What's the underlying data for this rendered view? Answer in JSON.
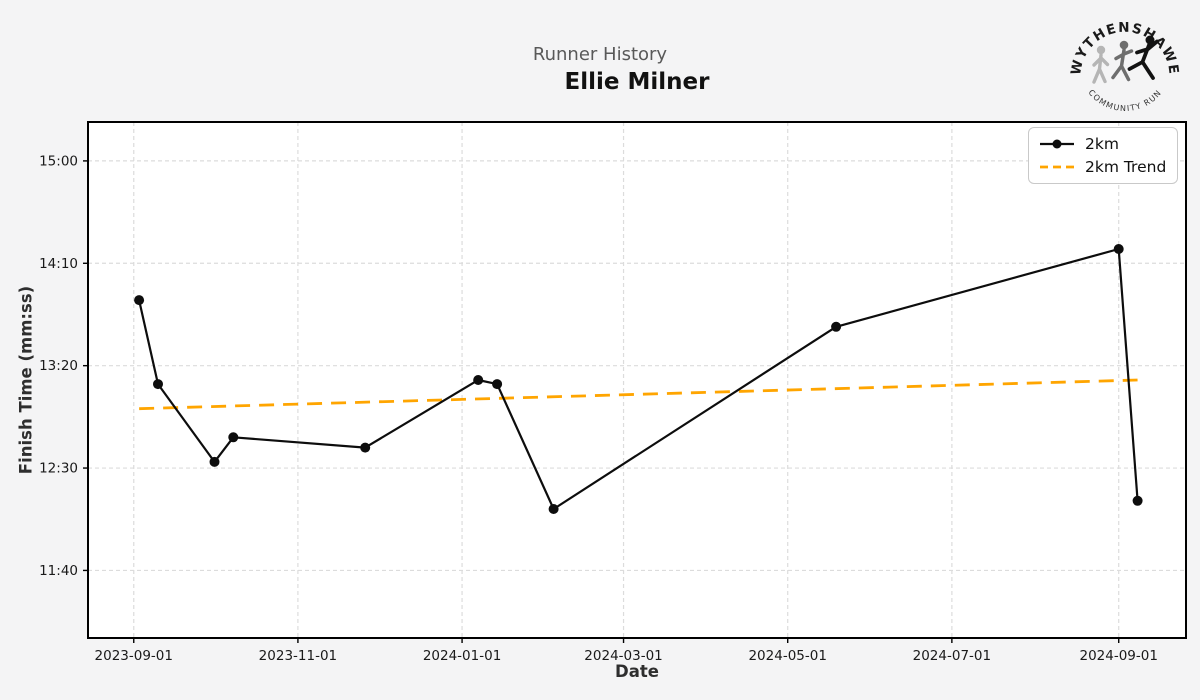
{
  "header": {
    "subtitle": "Runner History",
    "title": "Ellie Milner"
  },
  "logo": {
    "top_text": "WYTHENSHAWE",
    "bottom_text": "COMMUNITY RUN"
  },
  "chart_data": {
    "type": "line",
    "title": "Runner History",
    "subtitle": "Ellie Milner",
    "xlabel": "Date",
    "ylabel": "Finish Time (mm:ss)",
    "grid": true,
    "legend_position": "upper right",
    "legend": [
      {
        "label": "2km"
      },
      {
        "label": "2km Trend"
      }
    ],
    "series": [
      {
        "name": "2km",
        "points": [
          {
            "date": "2023-09-03",
            "time": "13:52"
          },
          {
            "date": "2023-09-10",
            "time": "13:11"
          },
          {
            "date": "2023-10-01",
            "time": "12:33"
          },
          {
            "date": "2023-10-08",
            "time": "12:45"
          },
          {
            "date": "2023-11-26",
            "time": "12:40"
          },
          {
            "date": "2024-01-07",
            "time": "13:13"
          },
          {
            "date": "2024-01-14",
            "time": "13:11"
          },
          {
            "date": "2024-02-04",
            "time": "12:10"
          },
          {
            "date": "2024-05-19",
            "time": "13:39"
          },
          {
            "date": "2024-09-01",
            "time": "14:17"
          },
          {
            "date": "2024-09-08",
            "time": "12:14"
          }
        ]
      }
    ],
    "trend": {
      "name": "2km Trend",
      "start": {
        "date": "2023-09-03",
        "time": "12:59"
      },
      "end": {
        "date": "2024-09-08",
        "time": "13:13"
      }
    },
    "x_ticks": [
      "2023-09-01",
      "2023-11-01",
      "2024-01-01",
      "2024-03-01",
      "2024-05-01",
      "2024-07-01",
      "2024-09-01"
    ],
    "y_ticks": [
      "15:00",
      "14:10",
      "13:20",
      "12:30",
      "11:40"
    ],
    "xlim": [
      "2023-08-15",
      "2024-09-26"
    ],
    "ylim": [
      "11:07",
      "15:19"
    ],
    "colors": {
      "series": "#0d0d0d",
      "trend": "#FFA500",
      "grid": "#dcdcdc",
      "plot_bg": "#ffffff",
      "figure_bg": "#f4f4f5",
      "spine": "#000000",
      "tick_label": "#1a1a1a",
      "subtitle": "#595959",
      "title": "#111111"
    }
  }
}
